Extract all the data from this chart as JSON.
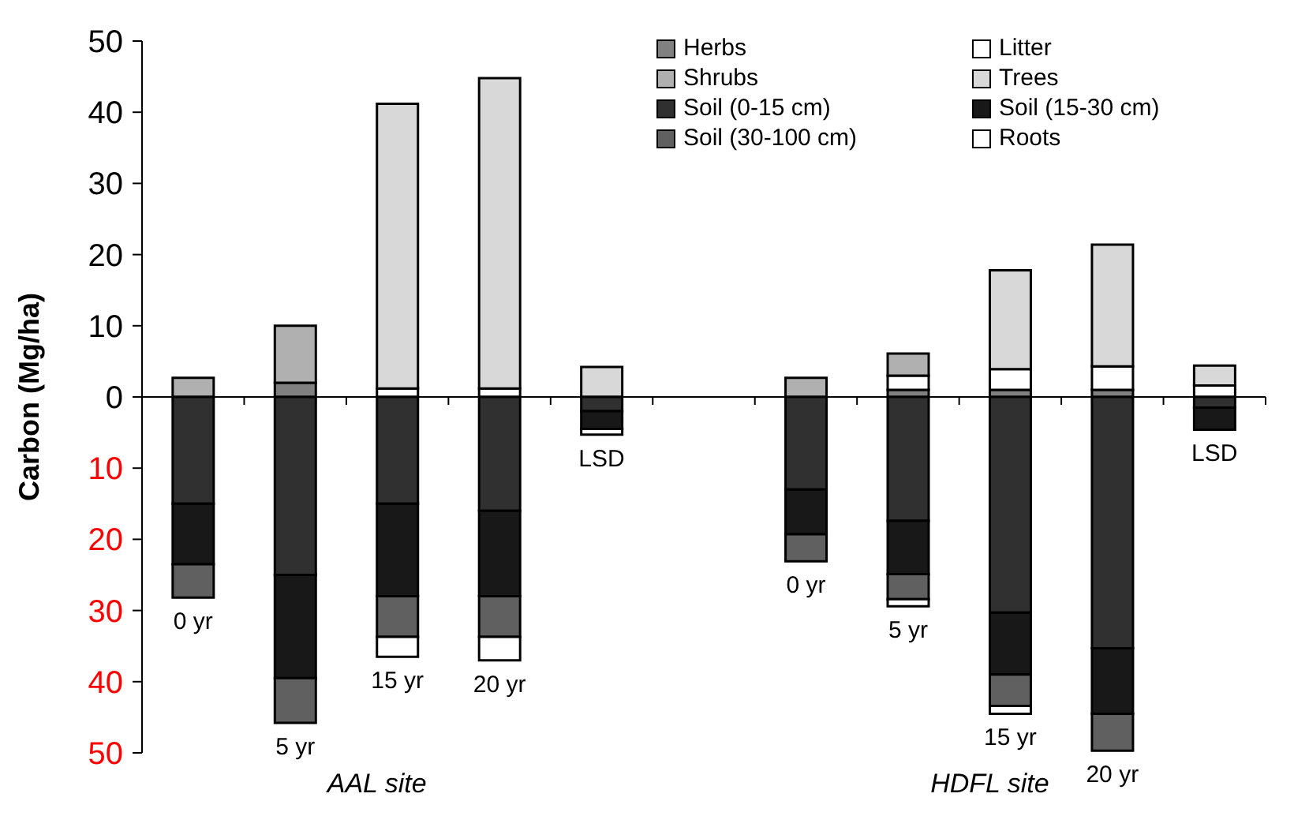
{
  "chart_data": {
    "type": "bar",
    "stacked": true,
    "ylabel": "Carbon (Mg/ha)",
    "categories": [
      "0 yr",
      "5 yr",
      "15 yr",
      "20 yr",
      "LSD",
      null,
      "0 yr",
      "5 yr",
      "15 yr",
      "20 yr",
      "LSD"
    ],
    "series": [
      {
        "name": "Herbs",
        "color": "#808080",
        "values": [
          null,
          2,
          0,
          0,
          null,
          null,
          0,
          1,
          1,
          1,
          null
        ]
      },
      {
        "name": "Litter",
        "color": "#ffffff",
        "values": [
          null,
          0,
          1.2,
          1.2,
          0,
          null,
          null,
          2,
          2.9,
          3.3,
          1.6
        ]
      },
      {
        "name": "Shrubs",
        "color": "#b0b0b0",
        "values": [
          2.7,
          8,
          0,
          0,
          0,
          null,
          2.7,
          3.1,
          0,
          0,
          0
        ]
      },
      {
        "name": "Trees",
        "color": "#d8d8d8",
        "values": [
          0,
          0,
          40,
          43.6,
          4.2,
          null,
          0,
          0,
          13.9,
          17.1,
          2.8
        ]
      },
      {
        "name": "Soil (0-15 cm)",
        "color": "#303030",
        "values": [
          -15,
          -25,
          -15,
          -16,
          -2,
          null,
          -13,
          -17.4,
          -30.3,
          -35.3,
          -1.5
        ]
      },
      {
        "name": "Soil (15-30 cm)",
        "color": "#181818",
        "values": [
          -8.5,
          -14.5,
          -13,
          -12,
          -2.5,
          null,
          -6.3,
          -7.5,
          -8.7,
          -9.2,
          -3.1
        ]
      },
      {
        "name": "Soil (30-100 cm)",
        "color": "#606060",
        "values": [
          -4.7,
          -6.3,
          -5.7,
          -5.7,
          0,
          null,
          -3.8,
          -3.5,
          -4.4,
          -5.2,
          0
        ]
      },
      {
        "name": "Roots",
        "color": "#ffffff",
        "values": [
          0,
          0,
          -2.8,
          -3.3,
          -0.8,
          null,
          0,
          -1,
          -1.1,
          0,
          0
        ]
      }
    ],
    "ylim": [
      -50,
      50
    ],
    "yticks": [
      {
        "value": -50,
        "label": "50"
      },
      {
        "value": -40,
        "label": "40"
      },
      {
        "value": -30,
        "label": "30"
      },
      {
        "value": -20,
        "label": "20"
      },
      {
        "value": -10,
        "label": "10"
      },
      0,
      10,
      20,
      30,
      40,
      50
    ],
    "legend": "top right",
    "annotations": [
      "AAL site",
      "HDFL site"
    ]
  }
}
